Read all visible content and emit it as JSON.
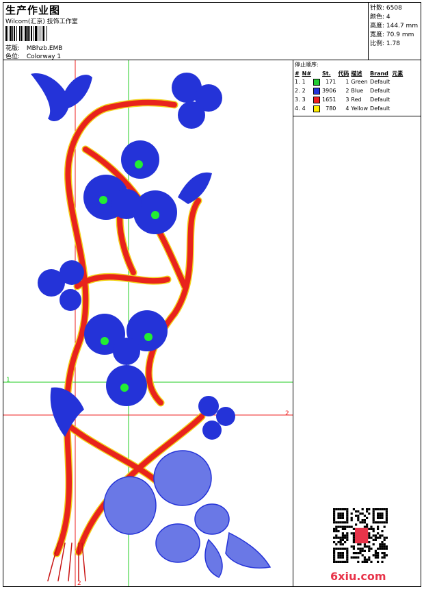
{
  "header": {
    "title": "生产作业图",
    "company": "Wilcom(汇京) 技饰工作室",
    "design_label": "花版:",
    "design_value": "MBhzb.EMB",
    "colorway_label": "色位:",
    "colorway_value": "Colorway 1"
  },
  "stats": {
    "stitches_label": "针数:",
    "stitches_value": "6508",
    "colors_label": "颜色:",
    "colors_value": "4",
    "height_label": "高度:",
    "height_value": "144.7 mm",
    "width_label": "宽度:",
    "width_value": "70.9 mm",
    "scale_label": "比例:",
    "scale_value": "1.78"
  },
  "stop_sequence": {
    "caption": "停止顺序:",
    "columns": [
      "#",
      "N#",
      "St.",
      "代码",
      "描述",
      "Brand",
      "元素"
    ],
    "rows": [
      {
        "idx": "1.",
        "n": "1",
        "color": "#22cc33",
        "st": "171",
        "code": "1",
        "desc": "Green",
        "brand": "Default"
      },
      {
        "idx": "2.",
        "n": "2",
        "color": "#2433d8",
        "st": "3906",
        "code": "2",
        "desc": "Blue",
        "brand": "Default"
      },
      {
        "idx": "3.",
        "n": "3",
        "color": "#ee1f1f",
        "st": "1651",
        "code": "3",
        "desc": "Red",
        "brand": "Default"
      },
      {
        "idx": "4.",
        "n": "4",
        "color": "#ffee00",
        "st": "780",
        "code": "4",
        "desc": "Yellow",
        "brand": "Default"
      }
    ]
  },
  "guides": {
    "h1_label": "1",
    "h2_label": "2",
    "v2_label": "2"
  },
  "watermark": "6xiu.com",
  "qr_stamp": "刺绣网"
}
